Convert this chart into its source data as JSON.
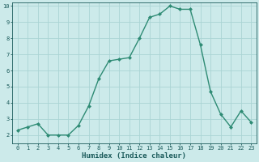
{
  "x": [
    0,
    1,
    2,
    3,
    4,
    5,
    6,
    7,
    8,
    9,
    10,
    11,
    12,
    13,
    14,
    15,
    16,
    17,
    18,
    19,
    20,
    21,
    22,
    23
  ],
  "y": [
    2.3,
    2.5,
    2.7,
    2.0,
    2.0,
    2.0,
    2.6,
    3.8,
    5.5,
    6.6,
    6.7,
    6.8,
    8.0,
    9.3,
    9.5,
    10.0,
    9.8,
    9.8,
    7.6,
    4.7,
    3.3,
    2.5,
    3.5,
    2.8
  ],
  "line_color": "#2e8b74",
  "marker": "D",
  "marker_size": 2.0,
  "bg_color": "#cceaea",
  "grid_color": "#aad4d4",
  "xlabel": "Humidex (Indice chaleur)",
  "xlabel_color": "#1a5a5a",
  "ylim": [
    1.5,
    10.2
  ],
  "xlim": [
    -0.5,
    23.5
  ],
  "yticks": [
    2,
    3,
    4,
    5,
    6,
    7,
    8,
    9,
    10
  ],
  "xticks": [
    0,
    1,
    2,
    3,
    4,
    5,
    6,
    7,
    8,
    9,
    10,
    11,
    12,
    13,
    14,
    15,
    16,
    17,
    18,
    19,
    20,
    21,
    22,
    23
  ],
  "tick_color": "#1a5a5a",
  "tick_fontsize": 5.0,
  "xlabel_fontsize": 6.5,
  "linewidth": 1.0
}
